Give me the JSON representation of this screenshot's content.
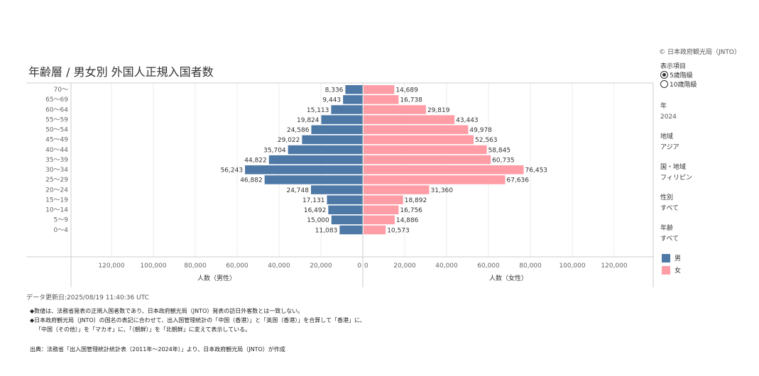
{
  "title": "年齢層 / 男女別 外国人正規入国者数",
  "copyright": "© 日本政府観光局（JNTO）",
  "filters": {
    "display_label": "表示項目",
    "display_options": [
      {
        "label": "5歳階級",
        "selected": true
      },
      {
        "label": "10歳階級",
        "selected": false
      }
    ],
    "year_label": "年",
    "year_value": "2024",
    "region_label": "地域",
    "region_value": "アジア",
    "country_label": "国・地域",
    "country_value": "フィリピン",
    "sex_label": "性別",
    "sex_value": "すべて",
    "age_label": "年齢",
    "age_value": "すべて"
  },
  "legend": [
    {
      "label": "男",
      "color": "#4e79a7"
    },
    {
      "label": "女",
      "color": "#ff9da7"
    }
  ],
  "updated": "データ更新日:2025/08/19 11:40:36 UTC",
  "notes": [
    "◆数値は、法務省発表の正規入国者数であり、日本政府観光局（JNTO）発表の訪日外客数とは一致しない。",
    "◆日本政府観光局（JNTO）の国名の表記に合わせて、出入国管理統計の「中国（香港）」と「英国（香港）」を合算して「香港」に、",
    "「中国（その他）」を「マカオ」に、「（朝鮮）」を「北朝鮮」に変えて表示している。"
  ],
  "source": "出典：法務省「出入国管理統計統計表（2011年～2024年）」より、日本政府観光局（JNTO）が作成",
  "chart_data": {
    "type": "bar",
    "orientation": "horizontal-population-pyramid",
    "categories": [
      "70～",
      "65～69",
      "60～64",
      "55～59",
      "50～54",
      "45～49",
      "40～44",
      "35～39",
      "30～34",
      "25～29",
      "20～24",
      "15～19",
      "10～14",
      "5～9",
      "0～4"
    ],
    "series": [
      {
        "name": "男",
        "color": "#4e79a7",
        "values": [
          8336,
          9443,
          15113,
          19824,
          24586,
          29022,
          35704,
          44822,
          56243,
          46882,
          24748,
          17131,
          16492,
          15000,
          11083
        ]
      },
      {
        "name": "女",
        "color": "#ff9da7",
        "values": [
          14689,
          16738,
          29819,
          43443,
          49978,
          52563,
          58845,
          60735,
          76453,
          67636,
          31360,
          18892,
          16756,
          14886,
          10573
        ]
      }
    ],
    "left_xlabel": "人数（男性）",
    "right_xlabel": "人数（女性）",
    "xlim": [
      0,
      140000
    ],
    "left_ticks": [
      "120,000",
      "100,000",
      "80,000",
      "60,000",
      "40,000",
      "20,000",
      "0"
    ],
    "right_ticks": [
      "0",
      "20,000",
      "40,000",
      "60,000",
      "80,000",
      "100,000",
      "120,000"
    ],
    "grid": true
  }
}
